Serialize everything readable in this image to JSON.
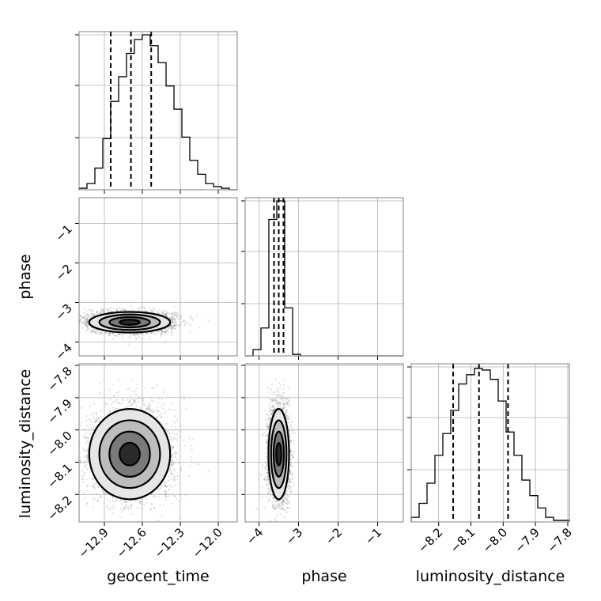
{
  "chart_data": {
    "type": "corner",
    "parameters": [
      {
        "name": "geocent_time",
        "label": "geocent_time",
        "range": [
          -13.1,
          -11.85
        ],
        "ticks": [
          -12.9,
          -12.6,
          -12.3,
          -12.0
        ],
        "tick_labels": [
          "−12.9",
          "−12.6",
          "−12.3",
          "−12.0"
        ],
        "quantiles": [
          -12.85,
          -12.69,
          -12.53
        ],
        "mean": -12.7,
        "sd": 0.16
      },
      {
        "name": "phase",
        "label": "phase",
        "range": [
          -4.35,
          -0.35
        ],
        "ticks": [
          -4,
          -3,
          -2,
          -1
        ],
        "tick_labels": [
          "−4",
          "−3",
          "−2",
          "−1"
        ],
        "quantiles": [
          -3.62,
          -3.5,
          -3.38
        ],
        "mean": -3.5,
        "sd": 0.13
      },
      {
        "name": "luminosity_distance",
        "label": "luminosity_distance",
        "range": [
          -8.285,
          -7.795
        ],
        "ticks": [
          -8.2,
          -8.1,
          -8.0,
          -7.9,
          -7.8
        ],
        "tick_labels": [
          "−8.2",
          "−8.1",
          "−8.0",
          "−7.9",
          "−7.8"
        ],
        "quantiles": [
          -8.155,
          -8.075,
          -7.985
        ],
        "mean": -8.075,
        "sd": 0.07
      }
    ],
    "histogram_1d": {
      "geocent_time": {
        "edges_start": -13.1,
        "bin_width": 0.0625,
        "counts": [
          1,
          4,
          14,
          33,
          57,
          73,
          88,
          97,
          100,
          93,
          82,
          67,
          52,
          34,
          19,
          10,
          4,
          2,
          1,
          0
        ]
      },
      "phase": {
        "edges_start": -4.35,
        "bin_width": 0.2,
        "counts": [
          0,
          4,
          18,
          88,
          100,
          31,
          1,
          0,
          0,
          0,
          0,
          0,
          0,
          0,
          0,
          0,
          0,
          0,
          0,
          0
        ]
      },
      "luminosity_distance": {
        "edges_start": -8.285,
        "bin_width": 0.0245,
        "counts": [
          3,
          12,
          25,
          43,
          57,
          72,
          89,
          95,
          99,
          98,
          92,
          78,
          58,
          43,
          27,
          17,
          9,
          3,
          1,
          1
        ]
      }
    },
    "grid": true,
    "quantile_lines": "dashed",
    "samples": 4000,
    "seed": 7
  }
}
